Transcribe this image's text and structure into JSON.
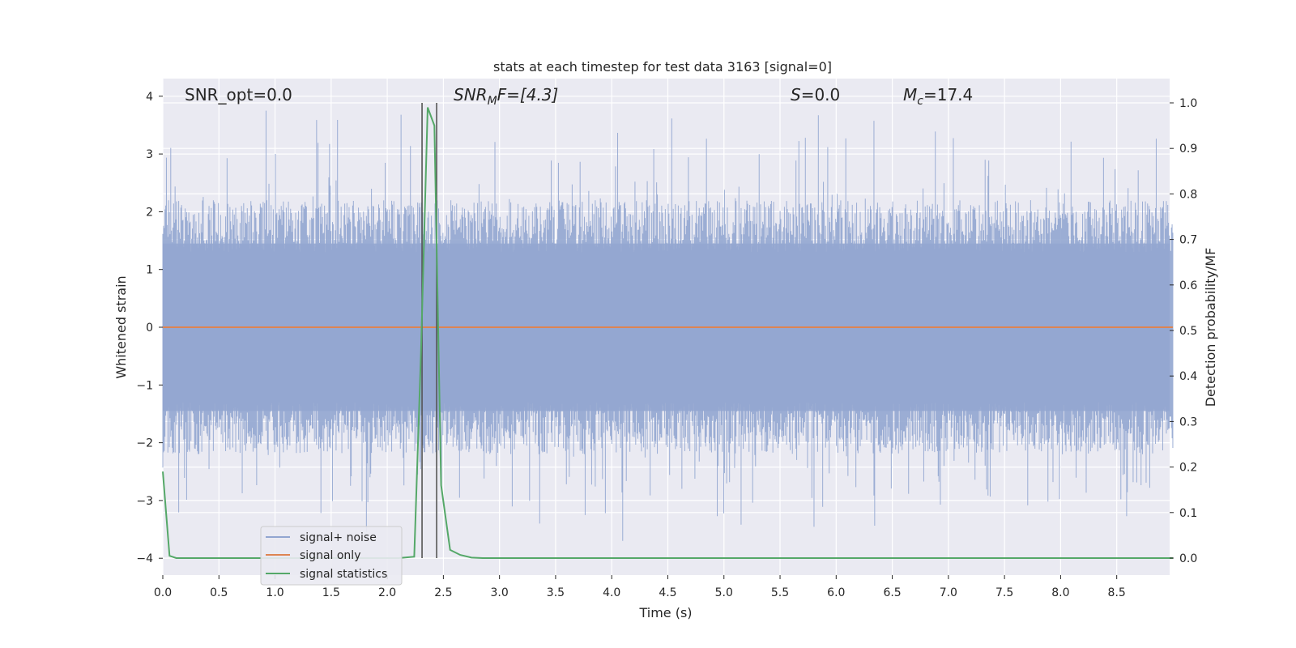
{
  "chart_data": {
    "type": "line",
    "title": "stats at each timestep for test data 3163 [signal=0]",
    "xlabel": "Time (s)",
    "ylabel_left": "Whitened strain",
    "ylabel_right": "Detection probability/MF",
    "xlim": [
      0.0,
      9.0
    ],
    "ylim_left": [
      -4.2,
      4.25
    ],
    "ylim_right": [
      -0.05,
      1.04
    ],
    "x_ticks": [
      "0.0",
      "0.5",
      "1.0",
      "1.5",
      "2.0",
      "2.5",
      "3.0",
      "3.5",
      "4.0",
      "4.5",
      "5.0",
      "5.5",
      "6.0",
      "6.5",
      "7.0",
      "7.5",
      "8.0",
      "8.5"
    ],
    "y_left_ticks": [
      "4",
      "3",
      "2",
      "1",
      "0",
      "−1",
      "−2",
      "−3",
      "−4"
    ],
    "y_right_ticks": [
      "1.0",
      "0.9",
      "0.8",
      "0.7",
      "0.6",
      "0.5",
      "0.4",
      "0.3",
      "0.2",
      "0.1",
      "0.0"
    ],
    "grid": true,
    "legend_position": "lower-left",
    "annotations": {
      "snr_opt": "SNR_opt=0.0",
      "snr_mf_main": "SNR",
      "snr_mf_sub": "M",
      "snr_mf_rest": "F=[4.3]",
      "s_italic": "S",
      "s_rest": "=0.0",
      "mc_main": "M",
      "mc_sub": "c",
      "mc_rest": "=17.4"
    },
    "vertical_lines_x": [
      2.31,
      2.44
    ],
    "series": [
      {
        "name": "signal+ noise",
        "color": "#92a6d0",
        "description_range": [
          -4.0,
          3.9
        ],
        "noise_samples": 1400
      },
      {
        "name": "signal only",
        "color": "#dd8452",
        "x": [
          0.0,
          9.0
        ],
        "y": [
          0.0,
          0.0
        ]
      },
      {
        "name": "signal statistics",
        "color": "#55a868",
        "x": [
          0.0,
          0.06,
          0.12,
          0.2,
          2.1,
          2.24,
          2.3,
          2.36,
          2.42,
          2.48,
          2.56,
          2.65,
          2.75,
          2.85,
          9.0
        ],
        "y": [
          0.19,
          0.005,
          0.0,
          0.0,
          0.0,
          0.003,
          0.45,
          0.99,
          0.95,
          0.16,
          0.018,
          0.007,
          0.001,
          0.0,
          0.0
        ]
      }
    ]
  }
}
